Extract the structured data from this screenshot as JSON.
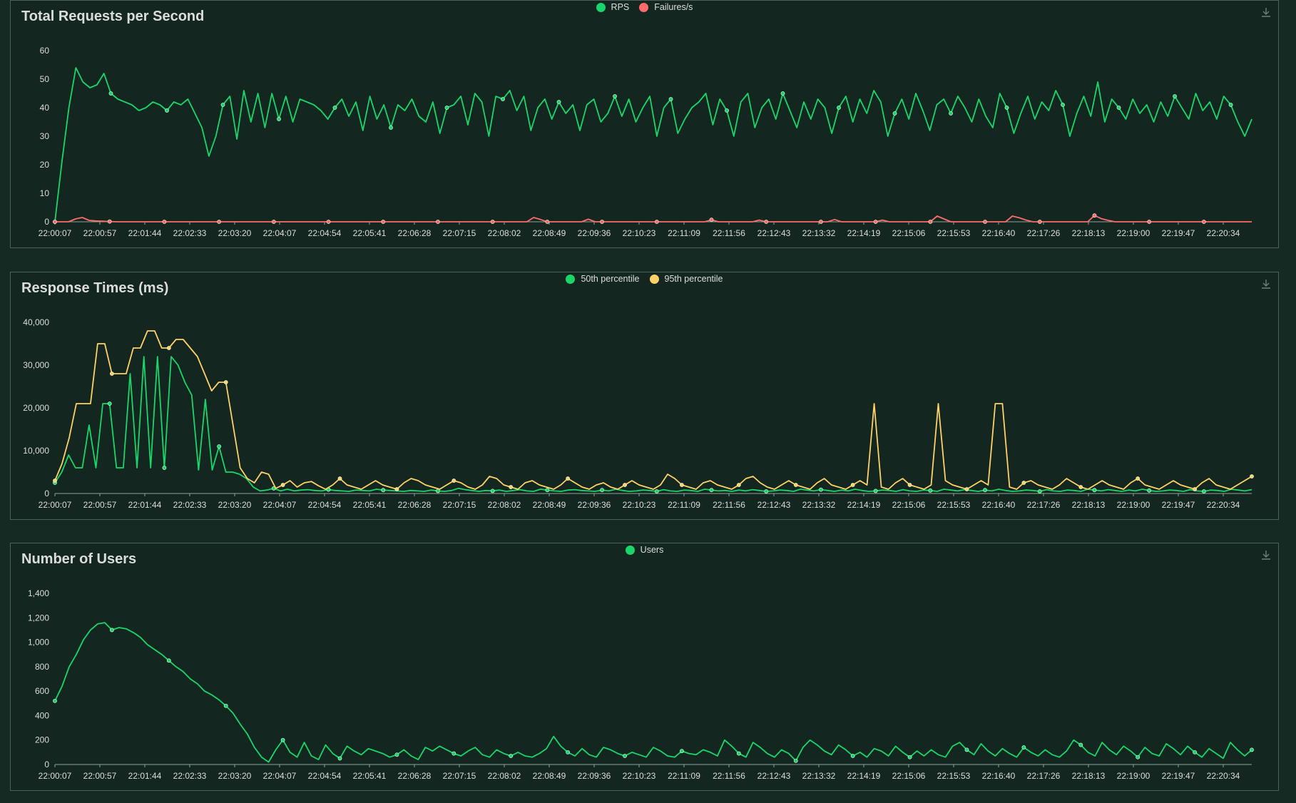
{
  "colors": {
    "background": "#152a22",
    "green": "#19d66a",
    "red": "#ff6b6b",
    "yellow": "#ffd166",
    "tick_text": "#dcdcdc"
  },
  "icons": {
    "download": "download-icon"
  },
  "chart_data": [
    {
      "type": "line",
      "title": "Total Requests per Second",
      "legend_position": "top-center",
      "grid": false,
      "x_ticks": [
        "22:00:07",
        "22:00:57",
        "22:01:44",
        "22:02:33",
        "22:03:20",
        "22:04:07",
        "22:04:54",
        "22:05:41",
        "22:06:28",
        "22:07:15",
        "22:08:02",
        "22:08:49",
        "22:09:36",
        "22:10:23",
        "22:11:09",
        "22:11:56",
        "22:12:43",
        "22:13:32",
        "22:14:19",
        "22:15:06",
        "22:15:53",
        "22:16:40",
        "22:17:26",
        "22:18:13",
        "22:19:00",
        "22:19:47",
        "22:20:34"
      ],
      "y_ticks": [
        "0",
        "10",
        "20",
        "30",
        "40",
        "50",
        "60"
      ],
      "ylim": [
        0,
        60
      ],
      "series": [
        {
          "name": "RPS",
          "color": "#19d66a",
          "values": [
            0,
            21,
            40,
            54,
            49,
            47,
            48,
            52,
            45,
            43,
            42,
            41,
            39,
            40,
            42,
            41,
            39,
            42,
            41,
            43,
            38,
            33,
            23,
            30,
            41,
            44,
            29,
            46,
            35,
            45,
            33,
            45,
            36,
            44,
            35,
            43,
            42,
            41,
            39,
            36,
            40,
            43,
            37,
            42,
            32,
            44,
            36,
            41,
            33,
            41,
            39,
            43,
            37,
            35,
            42,
            31,
            40,
            41,
            44,
            34,
            45,
            42,
            30,
            44,
            43,
            46,
            39,
            44,
            32,
            40,
            43,
            36,
            42,
            38,
            41,
            32,
            41,
            43,
            35,
            38,
            44,
            37,
            43,
            35,
            40,
            44,
            30,
            40,
            43,
            31,
            36,
            40,
            42,
            45,
            34,
            43,
            39,
            30,
            42,
            45,
            33,
            40,
            43,
            36,
            45,
            39,
            33,
            42,
            36,
            43,
            40,
            31,
            40,
            44,
            35,
            43,
            38,
            46,
            42,
            30,
            38,
            43,
            36,
            45,
            39,
            32,
            41,
            43,
            38,
            44,
            40,
            35,
            43,
            37,
            33,
            45,
            40,
            31,
            38,
            44,
            36,
            42,
            39,
            46,
            41,
            30,
            38,
            44,
            37,
            49,
            35,
            43,
            40,
            36,
            43,
            38,
            41,
            35,
            42,
            37,
            44,
            40,
            36,
            45,
            39,
            42,
            36,
            44,
            41,
            35,
            30,
            36
          ]
        },
        {
          "name": "Failures/s",
          "color": "#ff6b6b",
          "values": [
            0,
            0,
            0,
            1,
            1.5,
            0.5,
            0.3,
            0.2,
            0.1,
            0,
            0,
            0,
            0,
            0,
            0,
            0,
            0,
            0,
            0,
            0,
            0,
            0,
            0,
            0,
            0,
            0,
            0,
            0,
            0,
            0,
            0,
            0,
            0,
            0,
            0,
            0,
            0,
            0,
            0,
            0,
            0,
            0,
            0,
            0,
            0,
            0,
            0,
            0,
            0,
            0,
            0,
            0,
            0,
            0,
            0,
            0,
            0,
            0,
            0,
            0,
            0,
            0,
            0,
            0,
            0,
            0,
            0,
            0,
            0,
            0,
            1.5,
            0.8,
            0,
            0,
            0,
            0,
            0,
            0,
            0.9,
            0,
            0,
            0,
            0,
            0,
            0,
            0,
            0,
            0,
            0,
            0,
            0,
            0,
            0,
            0,
            0,
            0,
            0.7,
            0,
            0,
            0,
            0,
            0,
            0,
            0.6,
            0,
            0,
            0,
            0,
            0,
            0,
            0,
            0,
            0,
            0,
            0.8,
            0,
            0,
            0,
            0,
            0,
            0,
            0.6,
            0,
            0,
            0,
            0,
            0,
            0,
            0,
            2,
            1,
            0,
            0,
            0,
            0,
            0,
            0,
            0,
            0,
            0,
            2,
            1.4,
            0.6,
            0,
            0,
            0,
            0,
            0,
            0,
            0,
            0,
            0,
            2.2,
            1.1,
            0.5,
            0,
            0,
            0,
            0,
            0,
            0,
            0,
            0,
            0,
            0,
            0,
            0,
            0,
            0,
            0,
            0,
            0,
            0,
            0,
            0,
            0
          ]
        }
      ]
    },
    {
      "type": "line",
      "title": "Response Times (ms)",
      "legend_position": "top-center",
      "grid": false,
      "x_ticks": [
        "22:00:07",
        "22:00:57",
        "22:01:44",
        "22:02:33",
        "22:03:20",
        "22:04:07",
        "22:04:54",
        "22:05:41",
        "22:06:28",
        "22:07:15",
        "22:08:02",
        "22:08:49",
        "22:09:36",
        "22:10:23",
        "22:11:09",
        "22:11:56",
        "22:12:43",
        "22:13:32",
        "22:14:19",
        "22:15:06",
        "22:15:53",
        "22:16:40",
        "22:17:26",
        "22:18:13",
        "22:19:00",
        "22:19:47",
        "22:20:34"
      ],
      "y_ticks": [
        "0",
        "10,000",
        "20,000",
        "30,000",
        "40,000"
      ],
      "ylim": [
        0,
        40000
      ],
      "series": [
        {
          "name": "50th percentile",
          "color": "#19d66a",
          "values": [
            2500,
            5000,
            9000,
            6000,
            6000,
            16000,
            6000,
            21000,
            21000,
            6000,
            6000,
            28000,
            6000,
            32000,
            6000,
            32000,
            6000,
            32000,
            30000,
            26000,
            23000,
            5500,
            22000,
            5500,
            11000,
            5000,
            5000,
            4500,
            3500,
            1500,
            600,
            800,
            1200,
            600,
            1000,
            600,
            800,
            900,
            700,
            600,
            900,
            700,
            600,
            500,
            800,
            700,
            600,
            1000,
            800,
            700,
            600,
            500,
            700,
            600,
            500,
            800,
            600,
            500,
            700,
            1200,
            900,
            700,
            500,
            700,
            600,
            800,
            500,
            700,
            900,
            600,
            500,
            1000,
            800,
            600,
            500,
            800,
            900,
            700,
            600,
            500,
            800,
            600,
            1000,
            700,
            500,
            600,
            800,
            700,
            500,
            900,
            600,
            500,
            800,
            700,
            500,
            1000,
            800,
            600,
            700,
            500,
            800,
            600,
            900,
            700,
            500,
            600,
            800,
            700,
            500,
            1000,
            800,
            600,
            900,
            700,
            500,
            800,
            600,
            1000,
            700,
            500,
            600,
            800,
            700,
            500,
            900,
            600,
            500,
            800,
            700,
            500,
            1000,
            800,
            600,
            900,
            700,
            500,
            800,
            600,
            1000,
            700,
            500,
            600,
            800,
            700,
            500,
            900,
            600,
            500,
            800,
            700,
            500,
            1000,
            800,
            600,
            900,
            700,
            500,
            800,
            600,
            1000,
            700,
            500,
            600,
            800,
            700,
            500,
            900,
            600,
            500,
            800,
            700,
            500,
            1000,
            800,
            600,
            900
          ]
        },
        {
          "name": "95th percentile",
          "color": "#ffd166",
          "values": [
            3000,
            7000,
            13000,
            21000,
            21000,
            21000,
            35000,
            35000,
            28000,
            28000,
            28000,
            34000,
            34000,
            38000,
            38000,
            34000,
            34000,
            36000,
            36000,
            34000,
            32000,
            28000,
            24000,
            26000,
            26000,
            16000,
            6000,
            3500,
            2500,
            5000,
            4500,
            1200,
            2000,
            3000,
            1500,
            2500,
            2800,
            1800,
            1000,
            2000,
            3500,
            2000,
            1500,
            1000,
            2000,
            3000,
            2000,
            1500,
            1000,
            2500,
            3500,
            3000,
            2000,
            1500,
            1000,
            2000,
            3000,
            2500,
            1500,
            1000,
            2000,
            4000,
            3500,
            2000,
            1500,
            1000,
            2500,
            3000,
            2000,
            1500,
            1000,
            2000,
            3500,
            2500,
            1500,
            1000,
            2000,
            2500,
            1500,
            1000,
            2000,
            3000,
            2000,
            1500,
            1000,
            2000,
            4500,
            3500,
            2000,
            1500,
            1000,
            2500,
            3000,
            2000,
            1500,
            1000,
            2000,
            3500,
            4000,
            2500,
            1500,
            1000,
            2000,
            3000,
            2000,
            1500,
            1000,
            2500,
            3500,
            2000,
            1500,
            1000,
            2000,
            3000,
            2000,
            21000,
            1500,
            1000,
            2500,
            3500,
            2000,
            1500,
            1000,
            2000,
            21000,
            3000,
            2000,
            1500,
            1000,
            2000,
            3000,
            2000,
            21000,
            21000,
            1500,
            1000,
            2500,
            3000,
            2000,
            1500,
            1000,
            2000,
            3500,
            2500,
            1500,
            1000,
            2000,
            3000,
            2000,
            1500,
            1000,
            2500,
            3500,
            2000,
            1500,
            1000,
            2000,
            3000,
            2000,
            1500,
            1000,
            2500,
            3500,
            2000,
            1500,
            1000,
            2000,
            3000,
            4000
          ]
        }
      ]
    },
    {
      "type": "line",
      "title": "Number of Users",
      "legend_position": "top-center",
      "grid": false,
      "x_ticks": [
        "22:00:07",
        "22:00:57",
        "22:01:44",
        "22:02:33",
        "22:03:20",
        "22:04:07",
        "22:04:54",
        "22:05:41",
        "22:06:28",
        "22:07:15",
        "22:08:02",
        "22:08:49",
        "22:09:36",
        "22:10:23",
        "22:11:09",
        "22:11:56",
        "22:12:43",
        "22:13:32",
        "22:14:19",
        "22:15:06",
        "22:15:53",
        "22:16:40",
        "22:17:26",
        "22:18:13",
        "22:19:00",
        "22:19:47",
        "22:20:34"
      ],
      "y_ticks": [
        "0",
        "200",
        "400",
        "600",
        "800",
        "1,000",
        "1,200",
        "1,400"
      ],
      "ylim": [
        0,
        1400
      ],
      "series": [
        {
          "name": "Users",
          "color": "#19d66a",
          "values": [
            520,
            640,
            800,
            900,
            1020,
            1100,
            1150,
            1160,
            1100,
            1120,
            1110,
            1080,
            1040,
            980,
            940,
            900,
            850,
            800,
            760,
            700,
            660,
            600,
            570,
            530,
            480,
            420,
            330,
            250,
            140,
            60,
            20,
            120,
            200,
            100,
            60,
            180,
            70,
            40,
            160,
            90,
            50,
            150,
            110,
            80,
            130,
            110,
            90,
            60,
            80,
            120,
            70,
            40,
            140,
            110,
            150,
            120,
            90,
            70,
            110,
            140,
            80,
            60,
            120,
            90,
            70,
            100,
            70,
            60,
            90,
            130,
            230,
            150,
            100,
            70,
            130,
            80,
            60,
            140,
            120,
            90,
            70,
            100,
            80,
            60,
            140,
            110,
            70,
            60,
            110,
            90,
            80,
            120,
            100,
            70,
            200,
            150,
            90,
            60,
            180,
            140,
            90,
            60,
            120,
            90,
            30,
            140,
            200,
            160,
            110,
            80,
            160,
            120,
            70,
            100,
            60,
            130,
            110,
            70,
            150,
            100,
            60,
            110,
            70,
            120,
            80,
            60,
            150,
            180,
            120,
            80,
            170,
            110,
            70,
            130,
            90,
            60,
            140,
            100,
            70,
            120,
            80,
            60,
            110,
            200,
            160,
            100,
            70,
            180,
            120,
            80,
            150,
            110,
            60,
            140,
            90,
            70,
            170,
            130,
            80,
            150,
            100,
            60,
            130,
            90,
            50,
            180,
            120,
            70,
            120
          ]
        }
      ]
    }
  ]
}
